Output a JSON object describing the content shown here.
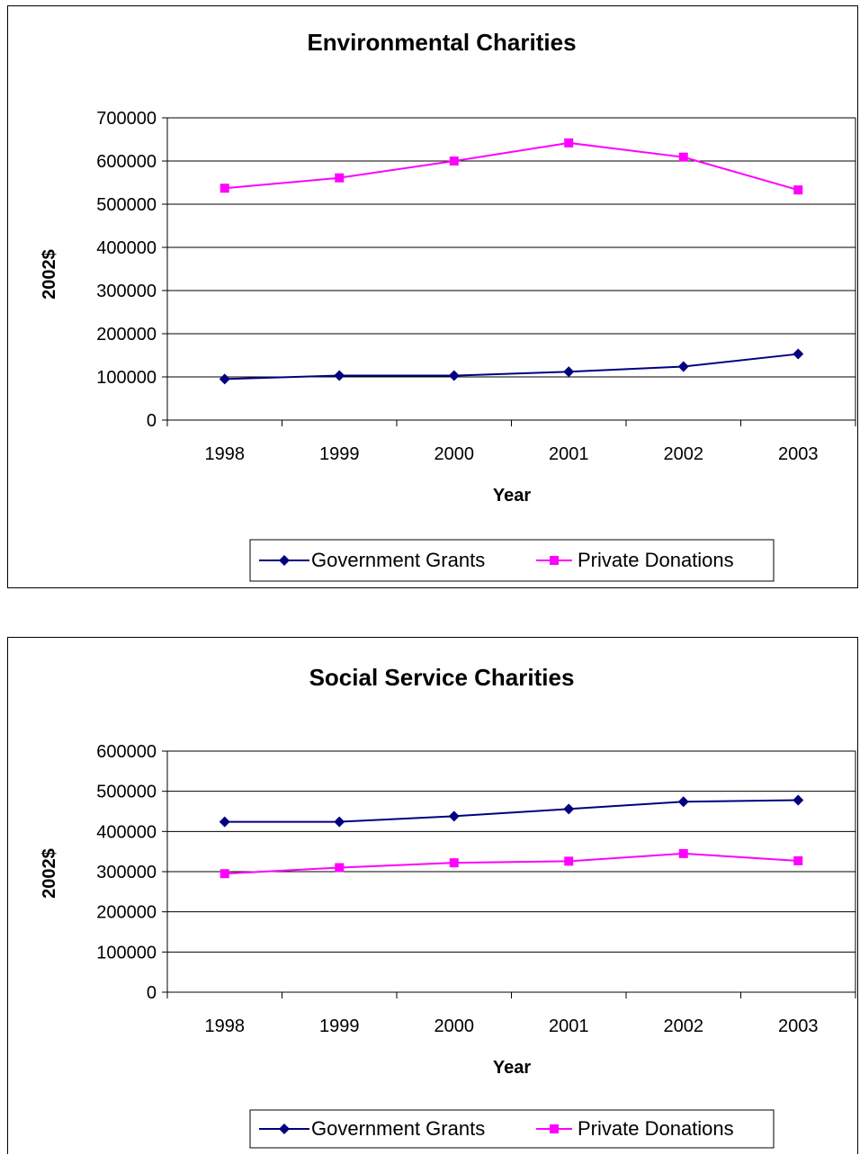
{
  "chart_data": [
    {
      "type": "line",
      "title": "Environmental Charities",
      "xlabel": "Year",
      "ylabel": "2002$",
      "categories": [
        "1998",
        "1999",
        "2000",
        "2001",
        "2002",
        "2003"
      ],
      "ylim": [
        0,
        700000
      ],
      "yticks": [
        "0",
        "100000",
        "200000",
        "300000",
        "400000",
        "500000",
        "600000",
        "700000"
      ],
      "grid": true,
      "legend_position": "bottom",
      "series": [
        {
          "name": "Government Grants",
          "color": "#000080",
          "marker": "diamond",
          "values": [
            95000,
            103000,
            103000,
            112000,
            124000,
            153000
          ]
        },
        {
          "name": "Private Donations",
          "color": "#FF00FF",
          "marker": "square",
          "values": [
            537000,
            561000,
            600000,
            642000,
            609000,
            533000
          ]
        }
      ]
    },
    {
      "type": "line",
      "title": "Social Service Charities",
      "xlabel": "Year",
      "ylabel": "2002$",
      "categories": [
        "1998",
        "1999",
        "2000",
        "2001",
        "2002",
        "2003"
      ],
      "ylim": [
        0,
        600000
      ],
      "yticks": [
        "0",
        "100000",
        "200000",
        "300000",
        "400000",
        "500000",
        "600000"
      ],
      "grid": true,
      "legend_position": "bottom",
      "series": [
        {
          "name": "Government Grants",
          "color": "#000080",
          "marker": "diamond",
          "values": [
            424000,
            424000,
            438000,
            456000,
            474000,
            478000
          ]
        },
        {
          "name": "Private Donations",
          "color": "#FF00FF",
          "marker": "square",
          "values": [
            295000,
            310000,
            322000,
            326000,
            345000,
            327000
          ]
        }
      ]
    }
  ]
}
